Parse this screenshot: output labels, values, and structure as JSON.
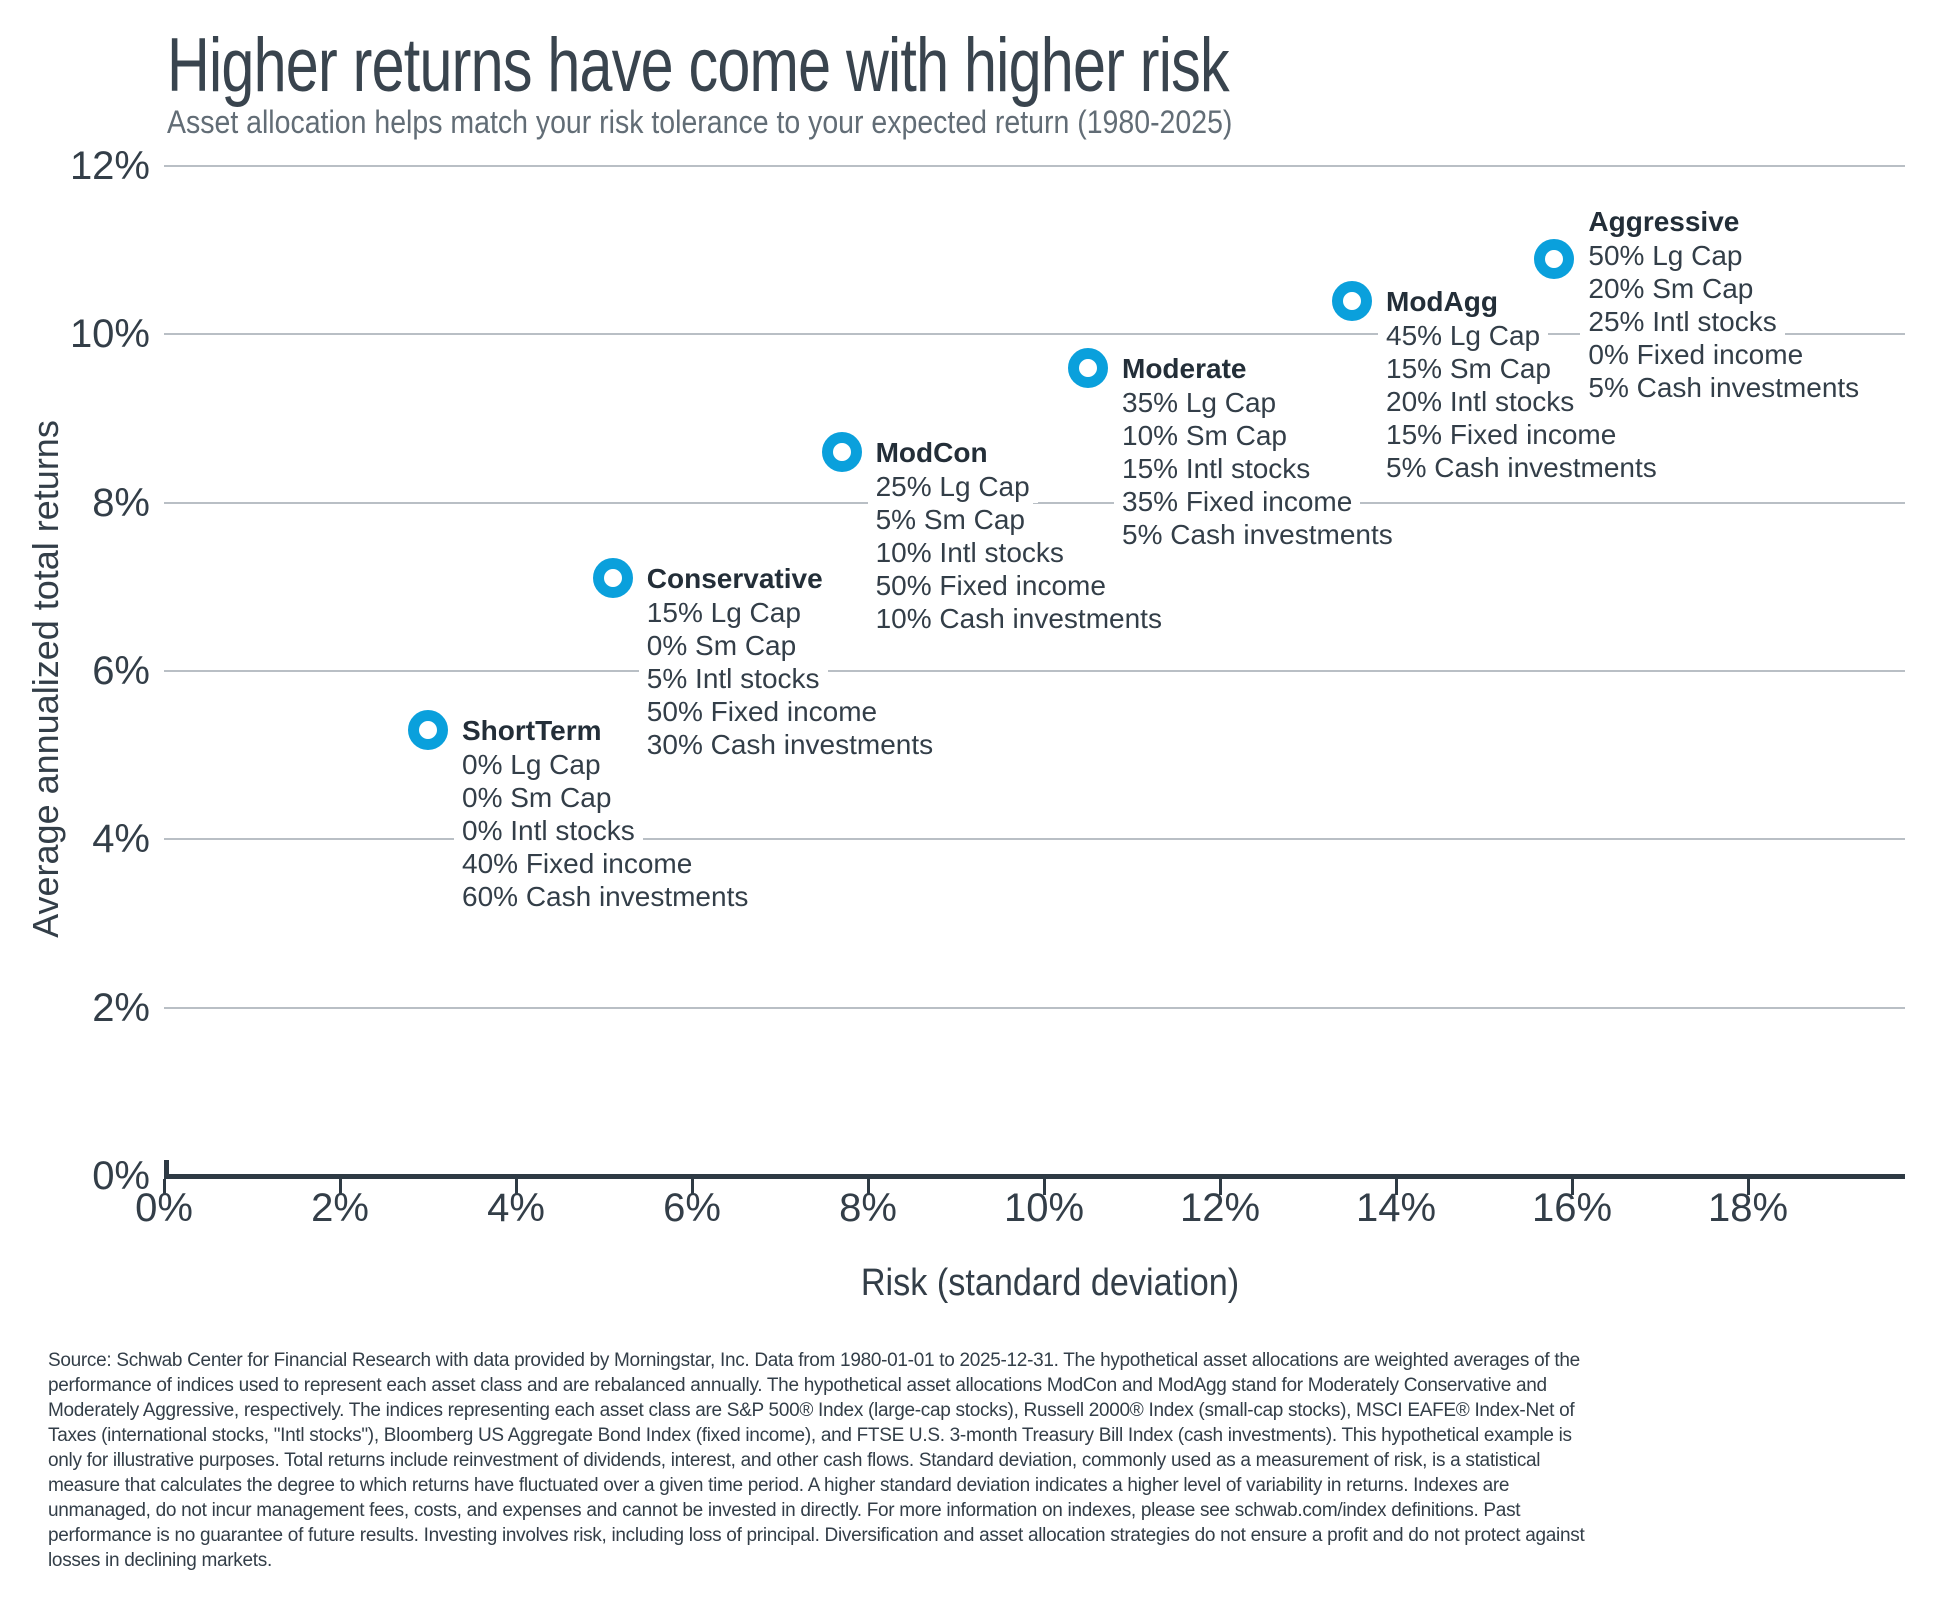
{
  "header": {
    "title": "Higher returns have come with higher risk",
    "subtitle": "Asset allocation helps match your risk tolerance to your expected return (1980-2025)"
  },
  "chart_data": {
    "type": "scatter",
    "title": "Higher returns have come with higher risk",
    "subtitle": "Asset allocation helps match your risk tolerance to your expected return (1980-2025)",
    "xlabel": "Risk (standard deviation)",
    "ylabel": "Average annualized total returns",
    "xlim": [
      0,
      19.8
    ],
    "ylim": [
      0,
      12
    ],
    "grid": "horizontal-only",
    "legend": "none",
    "marker_style": "open-ring",
    "marker_color": "#0AA0DC",
    "x_ticks": [
      {
        "label": "0%",
        "value": 0
      },
      {
        "label": "2%",
        "value": 2
      },
      {
        "label": "4%",
        "value": 4
      },
      {
        "label": "6%",
        "value": 6
      },
      {
        "label": "8%",
        "value": 8
      },
      {
        "label": "10%",
        "value": 10
      },
      {
        "label": "12%",
        "value": 12
      },
      {
        "label": "14%",
        "value": 14
      },
      {
        "label": "16%",
        "value": 16
      },
      {
        "label": "18%",
        "value": 18
      }
    ],
    "y_ticks": [
      {
        "label": "12%",
        "value": 12
      },
      {
        "label": "10%",
        "value": 10
      },
      {
        "label": "8%",
        "value": 8
      },
      {
        "label": "6%",
        "value": 6
      },
      {
        "label": "4%",
        "value": 4
      },
      {
        "label": "2%",
        "value": 2
      },
      {
        "label": "0%",
        "value": 0
      }
    ],
    "points": [
      {
        "name": "ShortTerm",
        "risk_pct": 3.0,
        "return_pct": 5.3,
        "allocations": [
          "0% Lg Cap",
          "0% Sm Cap",
          "0% Intl stocks",
          "40% Fixed income",
          "60% Cash investments"
        ]
      },
      {
        "name": "Conservative",
        "risk_pct": 5.1,
        "return_pct": 7.1,
        "allocations": [
          "15% Lg Cap",
          "0% Sm Cap",
          "5% Intl stocks",
          "50% Fixed income",
          "30% Cash investments"
        ]
      },
      {
        "name": "ModCon",
        "risk_pct": 7.7,
        "return_pct": 8.6,
        "allocations": [
          "25% Lg Cap",
          "5% Sm Cap",
          "10% Intl stocks",
          "50% Fixed income",
          "10% Cash investments"
        ]
      },
      {
        "name": "Moderate",
        "risk_pct": 10.5,
        "return_pct": 9.6,
        "allocations": [
          "35% Lg Cap",
          "10% Sm Cap",
          "15% Intl stocks",
          "35% Fixed income",
          "5% Cash investments"
        ]
      },
      {
        "name": "ModAgg",
        "risk_pct": 13.5,
        "return_pct": 10.4,
        "allocations": [
          "45% Lg Cap",
          "15% Sm Cap",
          "20% Intl stocks",
          "15% Fixed income",
          "5% Cash investments"
        ]
      },
      {
        "name": "Aggressive",
        "risk_pct": 15.8,
        "return_pct": 10.9,
        "allocations": [
          "50% Lg Cap",
          "20% Sm Cap",
          "25% Intl stocks",
          "0% Fixed income",
          "5% Cash investments"
        ]
      }
    ],
    "colors": {
      "marker_blue": "#0AA0DC",
      "dark_text": "#333E48",
      "bold_label_text": "#232E38",
      "subtitle_gray": "#626D76",
      "gridline_gray": "#B9BFC5",
      "axis_dark": "#2E3A44"
    }
  },
  "footer": {
    "text": "Source: Schwab Center for Financial Research with data provided by Morningstar, Inc. Data from 1980-01-01 to 2025-12-31. The hypothetical asset allocations are weighted averages of the performance of indices used to represent each asset class and are rebalanced annually. The hypothetical asset allocations ModCon and ModAgg stand for Moderately Conservative and Moderately Aggressive, respectively. The indices representing each asset class are S&P 500® Index (large-cap stocks), Russell 2000® Index (small-cap stocks), MSCI EAFE® Index-Net of Taxes (international stocks, \"Intl stocks\"), Bloomberg US Aggregate Bond Index (fixed income), and FTSE U.S. 3-month Treasury Bill Index (cash investments). This hypothetical example is only for illustrative purposes. Total returns include reinvestment of dividends, interest, and other cash flows. Standard deviation, commonly used as a measurement of risk, is a statistical measure that calculates the degree to which returns have fluctuated over a given time period. A higher standard deviation indicates a higher level of variability in returns. Indexes are unmanaged, do not incur management fees, costs, and expenses and cannot be invested in directly. For more information on indexes, please see schwab.com/index definitions. Past performance is no guarantee of future results. Investing involves risk, including loss of principal. Diversification and asset allocation strategies do not ensure a profit and do not protect against losses in declining markets."
  }
}
